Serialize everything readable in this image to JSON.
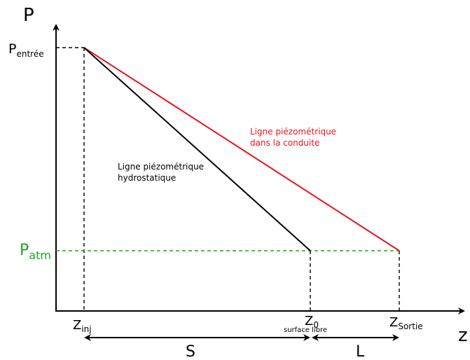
{
  "axes": {
    "y_label": "P",
    "x_label": "z"
  },
  "pressure_labels": {
    "entree_main": "P",
    "entree_sub": "entrée",
    "atm_main": "P",
    "atm_sub": "atm"
  },
  "z_labels": {
    "inj_main": "Z",
    "inj_sub": "inj",
    "zero_main": "Z",
    "zero_sub": "0",
    "zero_note": "surface libre",
    "sortie_main": "Z",
    "sortie_sub": "Sortie"
  },
  "lines": {
    "conduite_line1": "Ligne piézométrique",
    "conduite_line2": "dans la conduite",
    "hydro_line1": "Ligne piézométrique",
    "hydro_line2": "hydrostatique"
  },
  "dimensions": {
    "S": "S",
    "L": "L"
  },
  "colors": {
    "axis": "#000000",
    "hydrostatic": "#000000",
    "conduite": "#e8141b",
    "atmospheric": "#18a81a"
  }
}
